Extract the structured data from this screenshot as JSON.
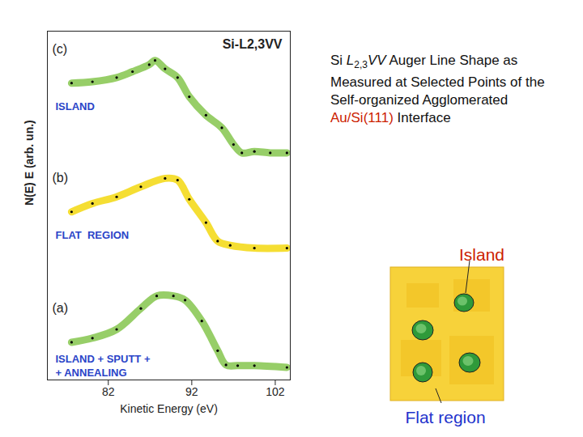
{
  "chart_data": {
    "type": "line",
    "title": "Si-L2,3VV",
    "x_label": "Kinetic Energy (eV)",
    "y_label": "N(E) E (arb. un.)",
    "xlim": [
      74.7,
      103.8
    ],
    "xticks": [
      82,
      92,
      102
    ],
    "ylim": [
      0,
      100
    ],
    "tick_labels": "x",
    "grid": false,
    "series": [
      {
        "name": "ISLAND",
        "panel": "(c)",
        "color": "#7dc242",
        "marker": "dot",
        "x": [
          77.6,
          80.1,
          83.0,
          84.9,
          86.9,
          87.6,
          88.8,
          90.3,
          91.7,
          93.7,
          95.6,
          97.0,
          98.0,
          99.5,
          101.4,
          103.4
        ],
        "values": [
          85.1,
          85.5,
          86.7,
          88.4,
          90.4,
          91.6,
          89.2,
          86.7,
          81.2,
          75.9,
          72.3,
          67.5,
          65.1,
          65.5,
          65.1,
          65.1
        ]
      },
      {
        "name": "FLAT  REGION",
        "panel": "(b)",
        "color": "#f2d600",
        "marker": "dot",
        "x": [
          77.6,
          80.1,
          83.0,
          85.9,
          88.8,
          90.3,
          91.7,
          93.7,
          95.1,
          96.6,
          99.5,
          103.4
        ],
        "values": [
          48.2,
          50.6,
          52.5,
          55.4,
          57.8,
          57.3,
          51.8,
          45.1,
          39.8,
          38.6,
          37.8,
          37.8
        ]
      },
      {
        "name": "ISLAND + SPUTT +\n+ ANNEALING",
        "panel": "(a)",
        "color": "#7dc242",
        "marker": "dot",
        "x": [
          77.6,
          80.1,
          83.0,
          85.9,
          87.8,
          89.8,
          91.2,
          93.2,
          95.1,
          96.1,
          97.5,
          99.5,
          103.4
        ],
        "values": [
          10.8,
          12.0,
          14.5,
          20.5,
          24.1,
          24.1,
          22.9,
          16.9,
          8.4,
          4.3,
          4.1,
          4.1,
          3.6
        ]
      }
    ]
  },
  "slide": {
    "caption": [
      {
        "text": "Si "
      },
      {
        "text": "L",
        "italic": true
      },
      {
        "text": "2,3",
        "sub": true
      },
      {
        "text": "VV",
        "italic": true
      },
      {
        "text": " Auger Line Shape as Measured at Selected Points of the Self-organized Agglomerated "
      },
      {
        "text": "Au/Si(111)",
        "color": "#cc2200"
      },
      {
        "text": " Interface"
      }
    ],
    "diagram": {
      "island_label": "Island",
      "flat_label": "Flat region"
    }
  }
}
